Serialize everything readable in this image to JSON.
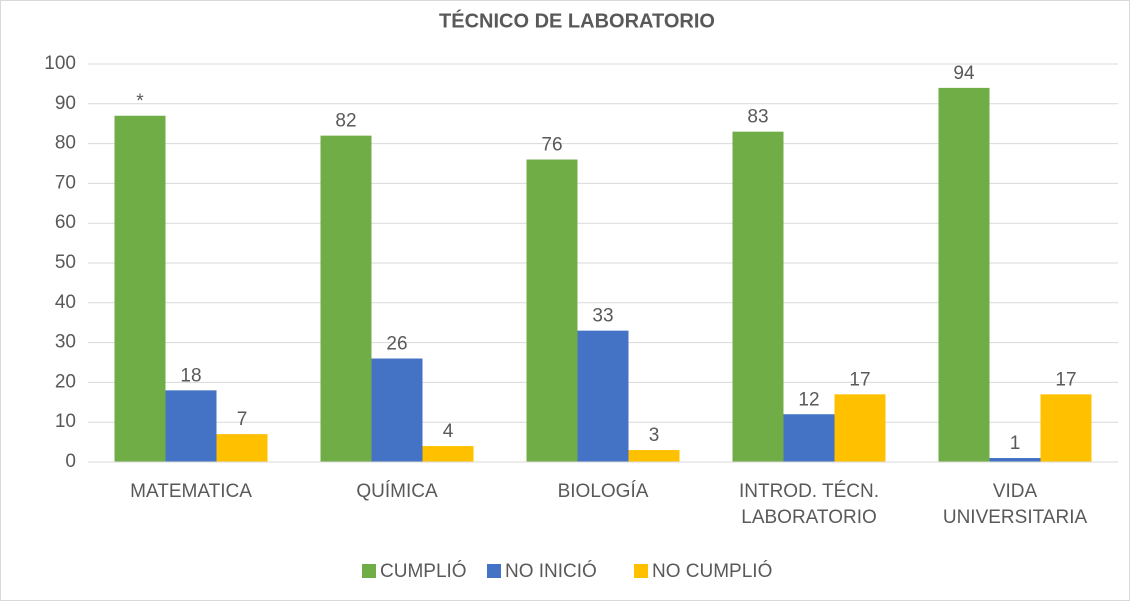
{
  "chart_data": {
    "type": "bar",
    "title": "TÉCNICO DE LABORATORIO",
    "categories": [
      "MATEMATICA",
      "QUÍMICA",
      "BIOLOGÍA",
      "INTROD. TÉCN. LABORATORIO",
      "VIDA UNIVERSITARIA"
    ],
    "series": [
      {
        "name": "CUMPLIÓ",
        "color": "#70ad47",
        "values": [
          87,
          82,
          76,
          83,
          94
        ],
        "value_labels": [
          "*",
          "82",
          "76",
          "83",
          "94"
        ]
      },
      {
        "name": "NO INICIÓ",
        "color": "#4472c4",
        "values": [
          18,
          26,
          33,
          12,
          1
        ]
      },
      {
        "name": "NO CUMPLIÓ",
        "color": "#ffc000",
        "values": [
          7,
          4,
          3,
          17,
          17
        ]
      }
    ],
    "ylim": [
      0,
      100
    ],
    "yticks": [
      0,
      10,
      20,
      30,
      40,
      50,
      60,
      70,
      80,
      90,
      100
    ],
    "grid": true,
    "legend": "bottom"
  }
}
